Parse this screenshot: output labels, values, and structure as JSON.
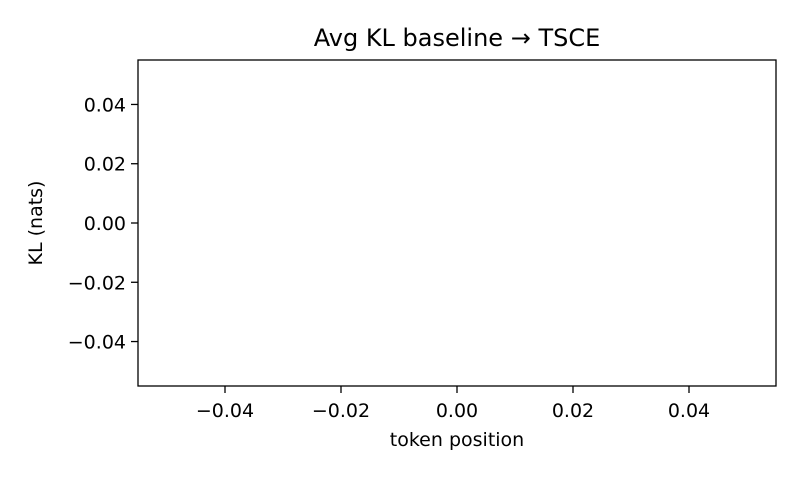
{
  "chart_data": {
    "type": "line",
    "title": "Avg KL   baseline → TSCE",
    "xlabel": "token position",
    "ylabel": "KL  (nats)",
    "xlim": [
      -0.055,
      0.055
    ],
    "ylim": [
      -0.055,
      0.055
    ],
    "xticks": [
      -0.04,
      -0.02,
      0.0,
      0.02,
      0.04
    ],
    "xtick_labels": [
      "−0.04",
      "−0.02",
      "0.00",
      "0.02",
      "0.04"
    ],
    "yticks": [
      -0.04,
      -0.02,
      0.0,
      0.02,
      0.04
    ],
    "ytick_labels": [
      "−0.04",
      "−0.02",
      "0.00",
      "0.02",
      "0.04"
    ],
    "grid": false,
    "series": [],
    "colors": {
      "axes": "#000000",
      "background": "#ffffff"
    }
  }
}
